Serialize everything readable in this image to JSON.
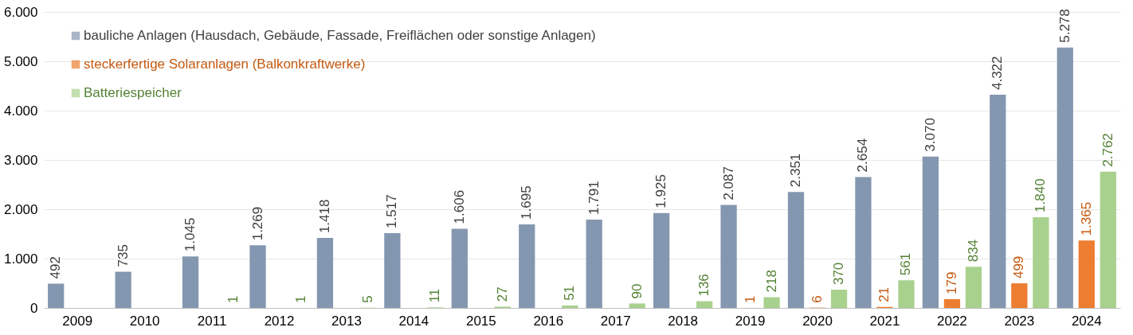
{
  "chart_data": {
    "type": "bar",
    "categories": [
      "2009",
      "2010",
      "2011",
      "2012",
      "2013",
      "2014",
      "2015",
      "2016",
      "2017",
      "2018",
      "2019",
      "2020",
      "2021",
      "2022",
      "2023",
      "2024"
    ],
    "series": [
      {
        "name": "bauliche Anlagen (Hausdach, Gebäude, Fassade, Freiflächen oder sonstige Anlagen)",
        "color": "#8497b0",
        "values": [
          492,
          735,
          1045,
          1269,
          1418,
          1517,
          1606,
          1695,
          1791,
          1925,
          2087,
          2351,
          2654,
          3070,
          4322,
          5278
        ],
        "value_labels": [
          "492",
          "735",
          "1.045",
          "1.269",
          "1.418",
          "1.517",
          "1.606",
          "1.695",
          "1.791",
          "1.925",
          "2.087",
          "2.351",
          "2.654",
          "3.070",
          "4.322",
          "5.278"
        ]
      },
      {
        "name": "steckerfertige Solaranlagen (Balkonkraftwerke)",
        "color": "#ed7d31",
        "values": [
          null,
          null,
          null,
          null,
          null,
          null,
          null,
          null,
          null,
          null,
          1,
          6,
          21,
          179,
          499,
          1365
        ],
        "value_labels": [
          null,
          null,
          null,
          null,
          null,
          null,
          null,
          null,
          null,
          null,
          "1",
          "6",
          "21",
          "179",
          "499",
          "1.365"
        ]
      },
      {
        "name": "Batteriespeicher",
        "color": "#a9d18e",
        "values": [
          null,
          null,
          1,
          1,
          5,
          11,
          27,
          51,
          90,
          136,
          218,
          370,
          561,
          834,
          1840,
          2762
        ],
        "value_labels": [
          null,
          null,
          "1",
          "1",
          "5",
          "11",
          "27",
          "51",
          "90",
          "136",
          "218",
          "370",
          "561",
          "834",
          "1.840",
          "2.762"
        ]
      }
    ],
    "ylim": [
      0,
      6000
    ],
    "yticks": [
      0,
      {
        "value": 1000,
        "label": "1.000"
      },
      {
        "value": 2000,
        "label": "2.000"
      },
      {
        "value": 3000,
        "label": "3.000"
      },
      {
        "value": 4000,
        "label": "4.000"
      },
      {
        "value": 5000,
        "label": "5.000"
      },
      {
        "value": 6000,
        "label": "6.000"
      }
    ],
    "grid": "y",
    "legend": "top left"
  }
}
